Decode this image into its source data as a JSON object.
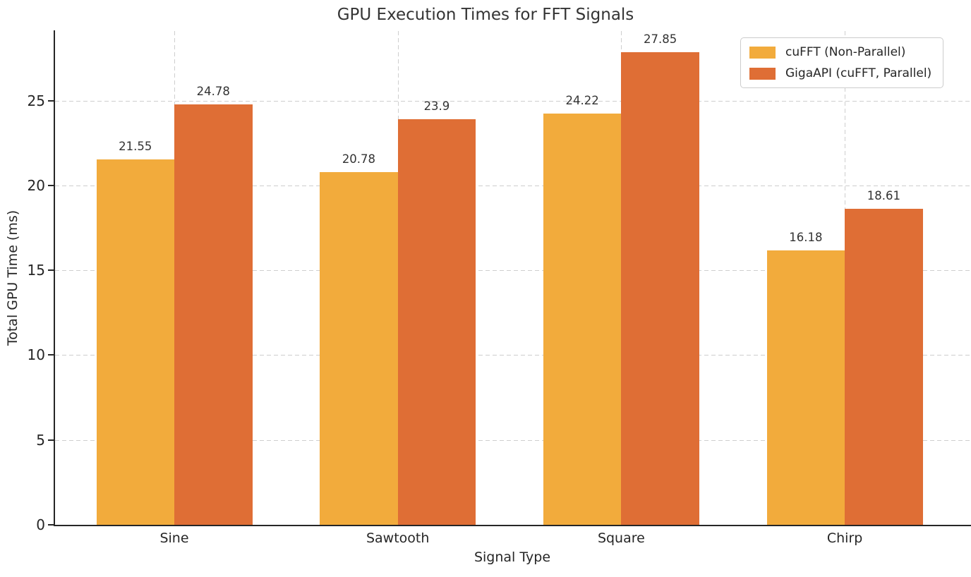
{
  "chart_data": {
    "type": "bar",
    "title": "GPU Execution Times for FFT Signals",
    "xlabel": "Signal Type",
    "ylabel": "Total GPU Time (ms)",
    "categories": [
      "Sine",
      "Sawtooth",
      "Square",
      "Chirp"
    ],
    "series": [
      {
        "name": "cuFFT (Non-Parallel)",
        "color": "#F2AB3C",
        "values": [
          21.55,
          20.78,
          24.22,
          16.18
        ]
      },
      {
        "name": "GigaAPI (cuFFT, Parallel)",
        "color": "#DF6E35",
        "values": [
          24.78,
          23.9,
          27.85,
          18.61
        ]
      }
    ],
    "value_labels": [
      "21.55",
      "24.78",
      "20.78",
      "23.9",
      "24.22",
      "27.85",
      "16.18",
      "18.61"
    ],
    "yticks": [
      0,
      5,
      10,
      15,
      20,
      25
    ],
    "ylim": [
      0,
      29.1
    ],
    "grid": "both-dashed",
    "legend_position": "upper right",
    "colors": {
      "grid": "#cecece",
      "spine": "#262626",
      "text": "#262626",
      "background": "#ffffff"
    }
  }
}
